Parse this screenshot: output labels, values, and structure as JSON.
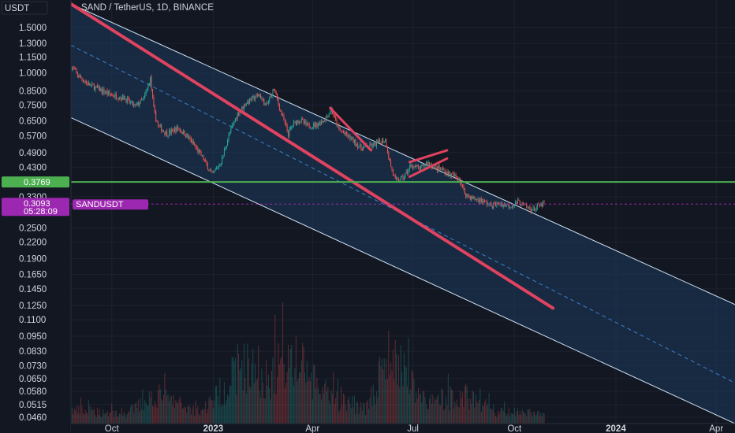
{
  "header": {
    "currency": "USDT",
    "title": "SAND / TetherUS, 1D, BINANCE"
  },
  "colors": {
    "background": "#131722",
    "channel_fill": "#1b3a5c",
    "channel_line": "#cfe3f5",
    "midline": "#3f7fc8",
    "trendline": "#e0435f",
    "support": "#4caf50",
    "price_tag": "#9c27b0",
    "candle_up": "#26a69a",
    "candle_down": "#ef5350"
  },
  "chart_data": {
    "type": "candlestick",
    "symbol": "SAND / TetherUS",
    "interval": "1D",
    "exchange": "BINANCE",
    "y_scale": "log",
    "ylim": [
      0.0435,
      1.85
    ],
    "y_ticks": [
      "1.5000",
      "1.3000",
      "1.1500",
      "1.0000",
      "0.8500",
      "0.7500",
      "0.6500",
      "0.5700",
      "0.4900",
      "0.4300",
      "0.3300",
      "0.2500",
      "0.2200",
      "0.1900",
      "0.1650",
      "0.1450",
      "0.1250",
      "0.1100",
      "0.0950",
      "0.0830",
      "0.0730",
      "0.0650",
      "0.0580",
      "0.0515",
      "0.0460"
    ],
    "x_ticks": [
      "Oct",
      "2023",
      "Apr",
      "Jul",
      "Oct",
      "2024",
      "Apr"
    ],
    "x_ticks_dates": [
      "2022-10-01",
      "2023-01-01",
      "2023-04-01",
      "2023-07-01",
      "2023-10-01",
      "2024-01-01",
      "2024-04-01"
    ],
    "xlim": [
      "2022-08-25",
      "2024-04-18"
    ],
    "price_path": [
      [
        "2022-08-25",
        1.06
      ],
      [
        "2022-09-01",
        0.97
      ],
      [
        "2022-09-10",
        0.9
      ],
      [
        "2022-09-20",
        0.86
      ],
      [
        "2022-10-01",
        0.82
      ],
      [
        "2022-10-12",
        0.8
      ],
      [
        "2022-10-22",
        0.74
      ],
      [
        "2022-10-30",
        0.79
      ],
      [
        "2022-11-05",
        0.95
      ],
      [
        "2022-11-08",
        0.72
      ],
      [
        "2022-11-12",
        0.62
      ],
      [
        "2022-11-20",
        0.58
      ],
      [
        "2022-11-30",
        0.61
      ],
      [
        "2022-12-08",
        0.57
      ],
      [
        "2022-12-15",
        0.52
      ],
      [
        "2022-12-22",
        0.47
      ],
      [
        "2022-12-31",
        0.4
      ],
      [
        "2023-01-08",
        0.45
      ],
      [
        "2023-01-15",
        0.57
      ],
      [
        "2023-01-22",
        0.68
      ],
      [
        "2023-01-30",
        0.76
      ],
      [
        "2023-02-05",
        0.79
      ],
      [
        "2023-02-12",
        0.82
      ],
      [
        "2023-02-18",
        0.74
      ],
      [
        "2023-02-25",
        0.87
      ],
      [
        "2023-03-03",
        0.71
      ],
      [
        "2023-03-10",
        0.58
      ],
      [
        "2023-03-14",
        0.63
      ],
      [
        "2023-03-20",
        0.66
      ],
      [
        "2023-03-28",
        0.62
      ],
      [
        "2023-04-05",
        0.63
      ],
      [
        "2023-04-12",
        0.66
      ],
      [
        "2023-04-18",
        0.72
      ],
      [
        "2023-04-25",
        0.6
      ],
      [
        "2023-05-05",
        0.56
      ],
      [
        "2023-05-15",
        0.51
      ],
      [
        "2023-05-25",
        0.52
      ],
      [
        "2023-06-01",
        0.54
      ],
      [
        "2023-06-06",
        0.55
      ],
      [
        "2023-06-10",
        0.45
      ],
      [
        "2023-06-15",
        0.38
      ],
      [
        "2023-06-22",
        0.39
      ],
      [
        "2023-06-30",
        0.44
      ],
      [
        "2023-07-07",
        0.42
      ],
      [
        "2023-07-14",
        0.45
      ],
      [
        "2023-07-20",
        0.43
      ],
      [
        "2023-07-28",
        0.42
      ],
      [
        "2023-08-05",
        0.4
      ],
      [
        "2023-08-12",
        0.39
      ],
      [
        "2023-08-17",
        0.34
      ],
      [
        "2023-08-24",
        0.325
      ],
      [
        "2023-09-01",
        0.32
      ],
      [
        "2023-09-10",
        0.305
      ],
      [
        "2023-09-18",
        0.31
      ],
      [
        "2023-09-26",
        0.305
      ],
      [
        "2023-10-05",
        0.315
      ],
      [
        "2023-10-12",
        0.3
      ],
      [
        "2023-10-18",
        0.295
      ],
      [
        "2023-10-24",
        0.305
      ],
      [
        "2023-10-28",
        0.3093
      ]
    ],
    "volume_profile": [
      [
        "2022-08-25",
        0.18
      ],
      [
        "2022-10-15",
        0.14
      ],
      [
        "2022-11-09",
        0.4
      ],
      [
        "2022-12-20",
        0.16
      ],
      [
        "2023-01-15",
        0.55
      ],
      [
        "2023-01-25",
        0.85
      ],
      [
        "2023-02-20",
        0.6
      ],
      [
        "2023-03-10",
        0.95
      ],
      [
        "2023-04-15",
        0.35
      ],
      [
        "2023-05-20",
        0.22
      ],
      [
        "2023-06-10",
        0.95
      ],
      [
        "2023-07-15",
        0.28
      ],
      [
        "2023-08-17",
        0.4
      ],
      [
        "2023-09-15",
        0.16
      ],
      [
        "2023-10-28",
        0.14
      ]
    ],
    "channel": {
      "upper": [
        [
          "2022-08-25",
          1.85
        ],
        [
          "2024-04-18",
          0.126
        ]
      ],
      "middle": [
        [
          "2022-08-25",
          1.28
        ],
        [
          "2024-04-18",
          0.0625
        ]
      ],
      "lower": [
        [
          "2022-08-25",
          0.67
        ],
        [
          "2024-04-18",
          0.0435
        ]
      ]
    },
    "trendlines": [
      [
        [
          "2022-08-25",
          1.85
        ],
        [
          "2023-11-05",
          0.122
        ]
      ],
      [
        [
          "2023-04-17",
          0.73
        ],
        [
          "2023-05-24",
          0.5
        ]
      ],
      [
        [
          "2023-06-28",
          0.45
        ],
        [
          "2023-08-01",
          0.5
        ]
      ],
      [
        [
          "2023-06-28",
          0.395
        ],
        [
          "2023-08-01",
          0.465
        ]
      ]
    ],
    "support_level": 0.3769,
    "last_price": 0.3093,
    "last_price_label": "SANDUSDT"
  },
  "price_tags": {
    "support": "0.3769",
    "last": "0.3093",
    "countdown": "05:28:09",
    "symbol": "SANDUSDT"
  }
}
